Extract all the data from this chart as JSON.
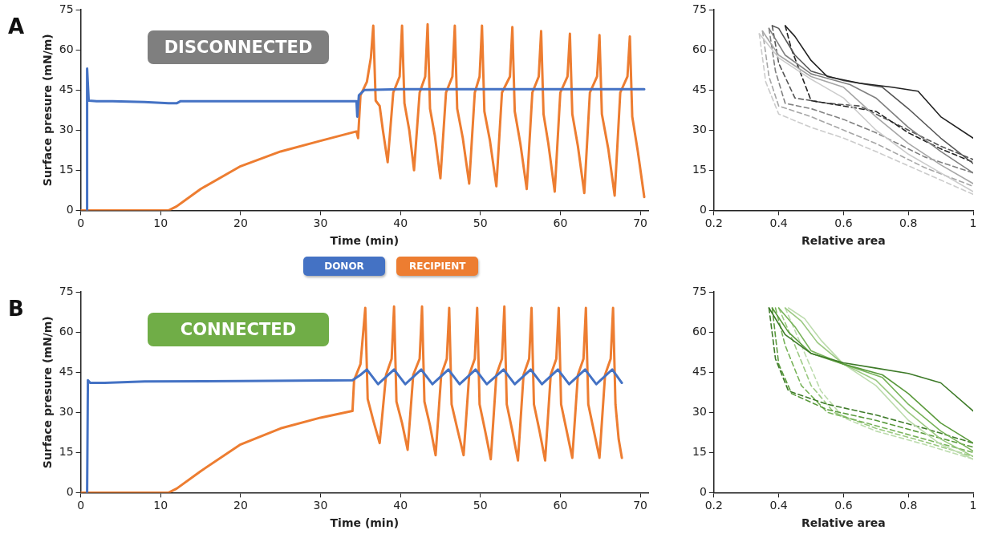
{
  "chart_data": [
    {
      "type": "line",
      "annotations": [
        "A",
        "DISCONNECTED"
      ],
      "xlabel": "Time (min)",
      "ylabel": "Surface presure (mN/m)",
      "xlim": [
        0,
        71
      ],
      "xticks": [
        0,
        10,
        20,
        30,
        40,
        50,
        60,
        70
      ],
      "ylim": [
        0,
        75
      ],
      "yticks": [
        0,
        15,
        30,
        45,
        60,
        75
      ],
      "series": [
        {
          "color": "#4472c4",
          "x": [
            0.8,
            0.8,
            1.0,
            2,
            4,
            8,
            11,
            12,
            12.5,
            20,
            30,
            34.5,
            34.6,
            34.8,
            35.5,
            40,
            70.5
          ],
          "values": [
            0,
            53,
            41,
            40.8,
            40.8,
            40.5,
            40,
            40,
            40.8,
            40.8,
            40.8,
            40.8,
            35,
            43,
            45,
            45.3,
            45.3
          ]
        },
        {
          "color": "#ed7d31",
          "x": [
            0,
            11,
            12,
            15,
            20,
            25,
            30,
            34.5,
            34.7,
            35,
            35.8,
            36.3,
            36.6,
            36.9,
            37.4,
            37.8,
            38.4,
            39.1,
            39.9,
            40.2,
            40.5,
            41.1,
            41.7,
            42.4,
            43.1,
            43.4,
            43.7,
            44.3,
            45.0,
            45.7,
            46.5,
            46.8,
            47.1,
            47.8,
            48.6,
            49.3,
            49.9,
            50.2,
            50.5,
            51.2,
            52.0,
            52.7,
            53.7,
            54.0,
            54.3,
            55.0,
            55.8,
            56.5,
            57.3,
            57.6,
            57.9,
            58.5,
            59.3,
            60.0,
            60.9,
            61.2,
            61.5,
            62.2,
            63.0,
            63.7,
            64.6,
            64.9,
            65.2,
            66.0,
            66.8,
            67.5,
            68.4,
            68.7,
            69.0,
            69.7,
            70.5
          ],
          "values": [
            0,
            0,
            1.5,
            8,
            16.5,
            22,
            26,
            29.5,
            27,
            43,
            48,
            57,
            69,
            41,
            39,
            30,
            18,
            44,
            50,
            69,
            40,
            30,
            15,
            44,
            50,
            69.5,
            38,
            28,
            12,
            44,
            50,
            69,
            38,
            27,
            10,
            44,
            50,
            69,
            37,
            26,
            9,
            44,
            50,
            68.5,
            37,
            25,
            8,
            44,
            50,
            67,
            36,
            25,
            7,
            44,
            50,
            66,
            36,
            24,
            6.5,
            44,
            50,
            65.5,
            36,
            23,
            5.5,
            44,
            50,
            65,
            35,
            22,
            5
          ]
        }
      ]
    },
    {
      "type": "line",
      "xlabel": "Relative area",
      "xlim": [
        0.2,
        1
      ],
      "xticks": [
        0.2,
        0.4,
        0.6,
        0.8,
        1
      ],
      "ylim": [
        0,
        75
      ],
      "yticks": [
        0,
        15,
        30,
        45,
        60,
        75
      ],
      "series": [
        {
          "color": "#222222",
          "x": [
            1,
            0.9,
            0.83,
            0.75,
            0.65,
            0.55,
            0.5,
            0.45,
            0.42
          ],
          "values": [
            27,
            35,
            44.5,
            46,
            47.5,
            50,
            56,
            65,
            69
          ]
        },
        {
          "color": "#555555",
          "x": [
            1,
            0.9,
            0.8,
            0.72,
            0.6,
            0.5,
            0.45,
            0.4,
            0.38
          ],
          "values": [
            17.5,
            27,
            38,
            46,
            48.5,
            52,
            58,
            68,
            69
          ]
        },
        {
          "color": "#808080",
          "x": [
            1,
            0.9,
            0.8,
            0.7,
            0.62,
            0.5,
            0.42,
            0.37
          ],
          "values": [
            14,
            22,
            31,
            42,
            47,
            51,
            58,
            68
          ]
        },
        {
          "color": "#a6a6a6",
          "x": [
            1,
            0.9,
            0.8,
            0.7,
            0.6,
            0.5,
            0.4,
            0.35
          ],
          "values": [
            10,
            17,
            25,
            35,
            46,
            50,
            58,
            67
          ]
        },
        {
          "color": "#cccccc",
          "x": [
            1,
            0.9,
            0.8,
            0.7,
            0.6,
            0.5,
            0.4,
            0.34
          ],
          "values": [
            7,
            14,
            21,
            30,
            42,
            49,
            57,
            66
          ]
        },
        {
          "color": "#222222",
          "line_style": "dashed",
          "x": [
            0.42,
            0.44,
            0.5,
            0.6,
            0.7,
            0.8,
            0.9,
            1
          ],
          "values": [
            69,
            60,
            41,
            39,
            37,
            29,
            23,
            18
          ]
        },
        {
          "color": "#555555",
          "line_style": "dashed",
          "x": [
            0.38,
            0.4,
            0.45,
            0.55,
            0.65,
            0.75,
            0.9,
            1
          ],
          "values": [
            69,
            55,
            42,
            40,
            39,
            33,
            24,
            19
          ]
        },
        {
          "color": "#808080",
          "line_style": "dashed",
          "x": [
            0.37,
            0.39,
            0.42,
            0.5,
            0.6,
            0.7,
            0.85,
            1
          ],
          "values": [
            68,
            52,
            40,
            38,
            34,
            29,
            20,
            14
          ]
        },
        {
          "color": "#a6a6a6",
          "line_style": "dashed",
          "x": [
            0.35,
            0.37,
            0.4,
            0.5,
            0.6,
            0.7,
            0.85,
            1
          ],
          "values": [
            67,
            50,
            39,
            35,
            30,
            25,
            16,
            9
          ]
        },
        {
          "color": "#cccccc",
          "line_style": "dashed",
          "x": [
            0.34,
            0.36,
            0.4,
            0.5,
            0.6,
            0.7,
            0.85,
            1
          ],
          "values": [
            66,
            48,
            36,
            31,
            27,
            22,
            14,
            6
          ]
        }
      ]
    },
    {
      "type": "line",
      "annotations": [
        "B",
        "CONNECTED"
      ],
      "legend": "top",
      "xlabel": "Time (min)",
      "ylabel": "Surface presure (mN/m)",
      "xlim": [
        0,
        71
      ],
      "xticks": [
        0,
        10,
        20,
        30,
        40,
        50,
        60,
        70
      ],
      "ylim": [
        0,
        75
      ],
      "yticks": [
        0,
        15,
        30,
        45,
        60,
        75
      ],
      "series": [
        {
          "name": "DONOR",
          "color": "#4472c4",
          "x": [
            0.8,
            0.9,
            1.2,
            3,
            8,
            20,
            34,
            35,
            35.8,
            37.2,
            39.2,
            40.6,
            42.6,
            44.0,
            46.0,
            47.4,
            49.4,
            50.8,
            52.9,
            54.3,
            56.3,
            57.7,
            59.7,
            61.1,
            63.1,
            64.5,
            66.5,
            67.7
          ],
          "values": [
            0,
            42,
            41,
            41,
            41.5,
            41.7,
            42,
            44,
            46,
            40.5,
            46,
            40.5,
            46,
            40.5,
            46,
            40.5,
            46,
            40.5,
            46,
            40.5,
            46,
            40.5,
            46,
            40.5,
            46,
            40.5,
            46,
            41
          ]
        },
        {
          "name": "RECIPIENT",
          "color": "#ed7d31",
          "x": [
            0,
            11,
            12,
            15,
            20,
            25,
            30,
            34,
            34.2,
            35,
            35.6,
            35.9,
            36.6,
            37.4,
            38.2,
            38.9,
            39.2,
            39.5,
            40.2,
            40.9,
            41.6,
            42.4,
            42.7,
            43,
            43.7,
            44.4,
            45.1,
            45.8,
            46.1,
            46.4,
            47.1,
            47.9,
            48.6,
            49.3,
            49.6,
            49.9,
            50.6,
            51.3,
            52,
            52.7,
            53,
            53.3,
            54,
            54.7,
            55.4,
            56.1,
            56.4,
            56.7,
            57.4,
            58.1,
            58.8,
            59.5,
            59.8,
            60.1,
            60.8,
            61.5,
            62.2,
            62.9,
            63.2,
            63.5,
            64.2,
            64.9,
            65.6,
            66.3,
            66.6,
            66.9,
            67.3,
            67.7
          ],
          "values": [
            0,
            0,
            1.5,
            8,
            18,
            24,
            28,
            30.5,
            42,
            48,
            69,
            35,
            27,
            18.5,
            44,
            50,
            69.5,
            34,
            26,
            16,
            44,
            50,
            69.5,
            34,
            25,
            14,
            44,
            50,
            69,
            33,
            24,
            14,
            44,
            50,
            69,
            33,
            23,
            12.5,
            44,
            50,
            69.5,
            33,
            23,
            12,
            44,
            50,
            69,
            33,
            23,
            12,
            44,
            50,
            69,
            33,
            23,
            13,
            44,
            50,
            69,
            33,
            23,
            13,
            44,
            50,
            69,
            33,
            20,
            13
          ]
        }
      ]
    },
    {
      "type": "line",
      "xlabel": "Relative area",
      "xlim": [
        0.2,
        1
      ],
      "xticks": [
        0.2,
        0.4,
        0.6,
        0.8,
        1
      ],
      "ylim": [
        0,
        75
      ],
      "yticks": [
        0,
        15,
        30,
        45,
        60,
        75
      ],
      "series": [
        {
          "color": "#3d7a28",
          "x": [
            1,
            0.9,
            0.8,
            0.7,
            0.6,
            0.5,
            0.42,
            0.37
          ],
          "values": [
            30.5,
            41,
            44.5,
            46.5,
            48.5,
            52,
            59,
            69
          ]
        },
        {
          "color": "#5a9a3c",
          "x": [
            1,
            0.9,
            0.8,
            0.72,
            0.6,
            0.5,
            0.43,
            0.38
          ],
          "values": [
            18.5,
            26,
            37,
            44,
            48,
            52,
            60,
            69
          ]
        },
        {
          "color": "#78b35a",
          "x": [
            1,
            0.9,
            0.8,
            0.72,
            0.6,
            0.5,
            0.45,
            0.4
          ],
          "values": [
            15.5,
            23,
            33,
            43,
            48,
            53,
            62,
            69
          ]
        },
        {
          "color": "#9bc982",
          "x": [
            1,
            0.9,
            0.8,
            0.7,
            0.6,
            0.52,
            0.47,
            0.42
          ],
          "values": [
            13.5,
            20,
            30,
            42,
            48,
            56,
            64,
            69
          ]
        },
        {
          "color": "#bddcae",
          "x": [
            1,
            0.9,
            0.8,
            0.7,
            0.6,
            0.53,
            0.48,
            0.43
          ],
          "values": [
            12.5,
            18,
            27,
            40,
            48,
            57,
            65,
            69
          ]
        },
        {
          "color": "#3d7a28",
          "line_style": "dashed",
          "x": [
            0.37,
            0.39,
            0.43,
            0.55,
            0.7,
            0.85,
            1
          ],
          "values": [
            69,
            50,
            38,
            33,
            29,
            24,
            18.5
          ]
        },
        {
          "color": "#5a9a3c",
          "line_style": "dashed",
          "x": [
            0.38,
            0.4,
            0.44,
            0.55,
            0.7,
            0.85,
            1
          ],
          "values": [
            69,
            48,
            37,
            31,
            27,
            22,
            17
          ]
        },
        {
          "color": "#78b35a",
          "line_style": "dashed",
          "x": [
            0.39,
            0.42,
            0.47,
            0.55,
            0.7,
            0.85,
            1
          ],
          "values": [
            69,
            55,
            40,
            30,
            25,
            20,
            15
          ]
        },
        {
          "color": "#9bc982",
          "line_style": "dashed",
          "x": [
            0.4,
            0.45,
            0.5,
            0.57,
            0.7,
            0.85,
            1
          ],
          "values": [
            69,
            55,
            40,
            30,
            24,
            19,
            13.5
          ]
        },
        {
          "color": "#bddcae",
          "line_style": "dashed",
          "x": [
            0.42,
            0.47,
            0.53,
            0.6,
            0.7,
            0.85,
            1
          ],
          "values": [
            69,
            55,
            38,
            28,
            23,
            18,
            12.5
          ]
        }
      ]
    }
  ]
}
